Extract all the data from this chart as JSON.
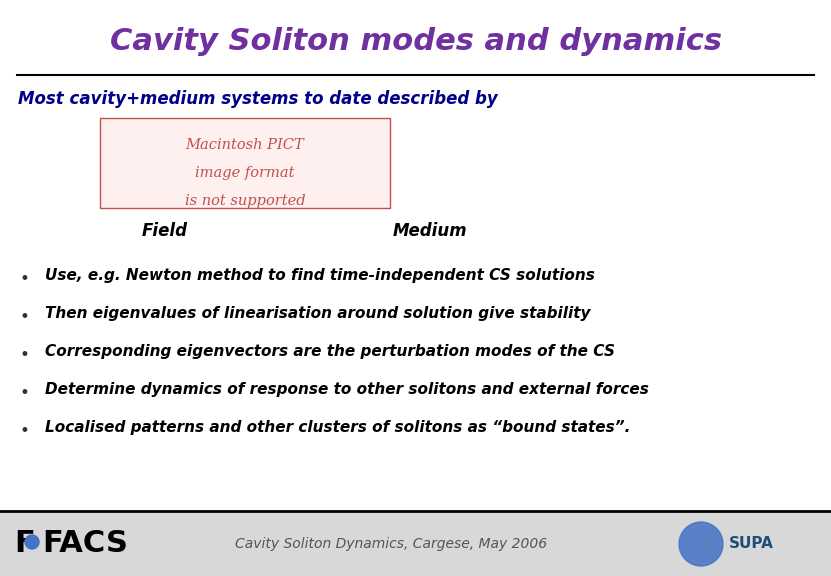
{
  "title": "Cavity Soliton modes and dynamics",
  "title_color": "#7030A0",
  "title_fontsize": 22,
  "subtitle": "Most cavity+medium systems to date described by",
  "subtitle_color": "#00008B",
  "subtitle_fontsize": 12,
  "pict_placeholder_lines": [
    "Macintosh PICT",
    "image format",
    "is not supported"
  ],
  "pict_color": "#C0504D",
  "pict_bg": "#FFF0F0",
  "field_label": "Field",
  "medium_label": "Medium",
  "field_medium_color": "#000000",
  "field_medium_fontsize": 12,
  "bullet_points": [
    "Use, e.g. Newton method to find time-independent CS solutions",
    "Then eigenvalues of linearisation around solution give stability",
    "Corresponding eigenvectors are the perturbation modes of the CS",
    "Determine dynamics of response to other solitons and external forces",
    "Localised patterns and other clusters of solitons as “bound states”."
  ],
  "bullet_color": "#000000",
  "bullet_fontsize": 11,
  "footer_text": "Cavity Soliton Dynamics, Cargese, May 2006",
  "footer_color": "#555555",
  "footer_fontsize": 10,
  "bg_color": "#FFFFFF",
  "footer_bg": "#D8D8D8",
  "line_color": "#000000"
}
